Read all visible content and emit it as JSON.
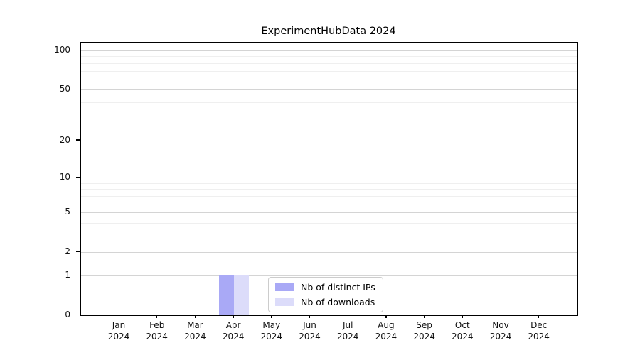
{
  "chart_data": {
    "type": "bar",
    "title": "ExperimentHubData 2024",
    "x_categories": [
      "Jan",
      "Feb",
      "Mar",
      "Apr",
      "May",
      "Jun",
      "Jul",
      "Aug",
      "Sep",
      "Oct",
      "Nov",
      "Dec"
    ],
    "x_year_label": "2024",
    "series": [
      {
        "name": "Nb of distinct IPs",
        "color": "#a9a9f6",
        "values": [
          0,
          0,
          0,
          1,
          0,
          0,
          0,
          0,
          0,
          0,
          0,
          0
        ]
      },
      {
        "name": "Nb of downloads",
        "color": "#dcdcfa",
        "values": [
          0,
          0,
          0,
          1,
          0,
          0,
          0,
          0,
          0,
          0,
          0,
          0
        ]
      }
    ],
    "y_scale": "log1p",
    "y_axis_ticks": [
      0,
      1,
      2,
      5,
      10,
      20,
      50,
      100
    ],
    "y_axis_minor_ticks": [
      3,
      4,
      6,
      7,
      8,
      9,
      30,
      40,
      60,
      70,
      80,
      90
    ],
    "y_axis_range_top": 115,
    "grid": true,
    "legend_position": "lower-center",
    "colors": {
      "major_grid": "#d4d4d4",
      "minor_grid": "#efefef",
      "spine": "#000000",
      "background": "#ffffff"
    }
  }
}
